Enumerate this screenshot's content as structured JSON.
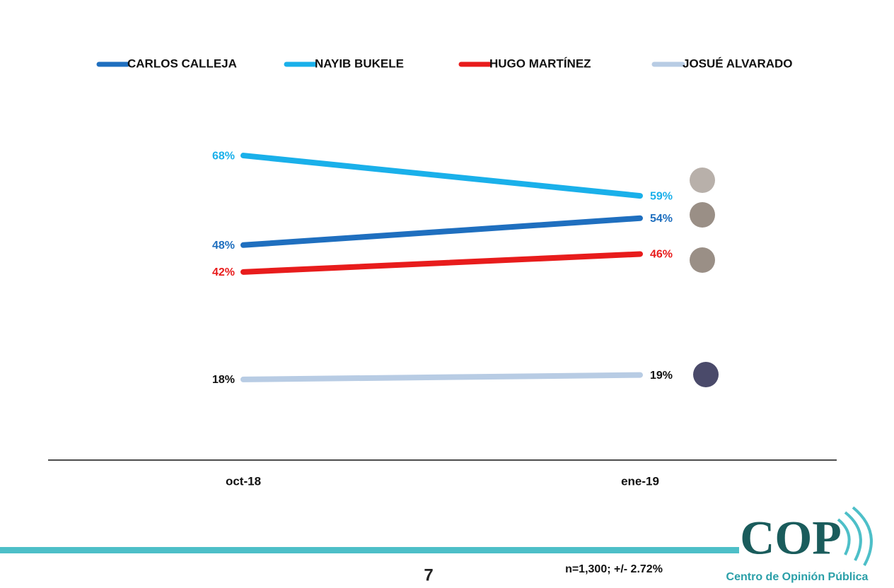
{
  "chart_data": {
    "type": "line",
    "categories": [
      "oct-18",
      "ene-19"
    ],
    "series": [
      {
        "name": "CARLOS CALLEJA",
        "color": "#1f6fbf",
        "label_color": "#1f6fbf",
        "values": [
          48,
          54
        ],
        "value_labels": [
          "48%",
          "54%"
        ]
      },
      {
        "name": "NAYIB BUKELE",
        "color": "#1ab0ea",
        "label_color": "#1ab0ea",
        "values": [
          68,
          59
        ],
        "value_labels": [
          "68%",
          "59%"
        ]
      },
      {
        "name": "HUGO MARTÍNEZ",
        "color": "#e81c1c",
        "label_color": "#e81c1c",
        "values": [
          42,
          46
        ],
        "value_labels": [
          "42%",
          "46%"
        ]
      },
      {
        "name": "JOSUÉ ALVARADO",
        "color": "#b8cce4",
        "label_color": "#111111",
        "values": [
          18,
          19
        ],
        "value_labels": [
          "18%",
          "19%"
        ]
      }
    ],
    "ylim": [
      0,
      80
    ]
  },
  "footer": {
    "page_number": "7",
    "sample_note": "n=1,300; +/- 2.72%",
    "logo": {
      "mark": "COP",
      "name": "Centro de Opinión Pública"
    }
  }
}
